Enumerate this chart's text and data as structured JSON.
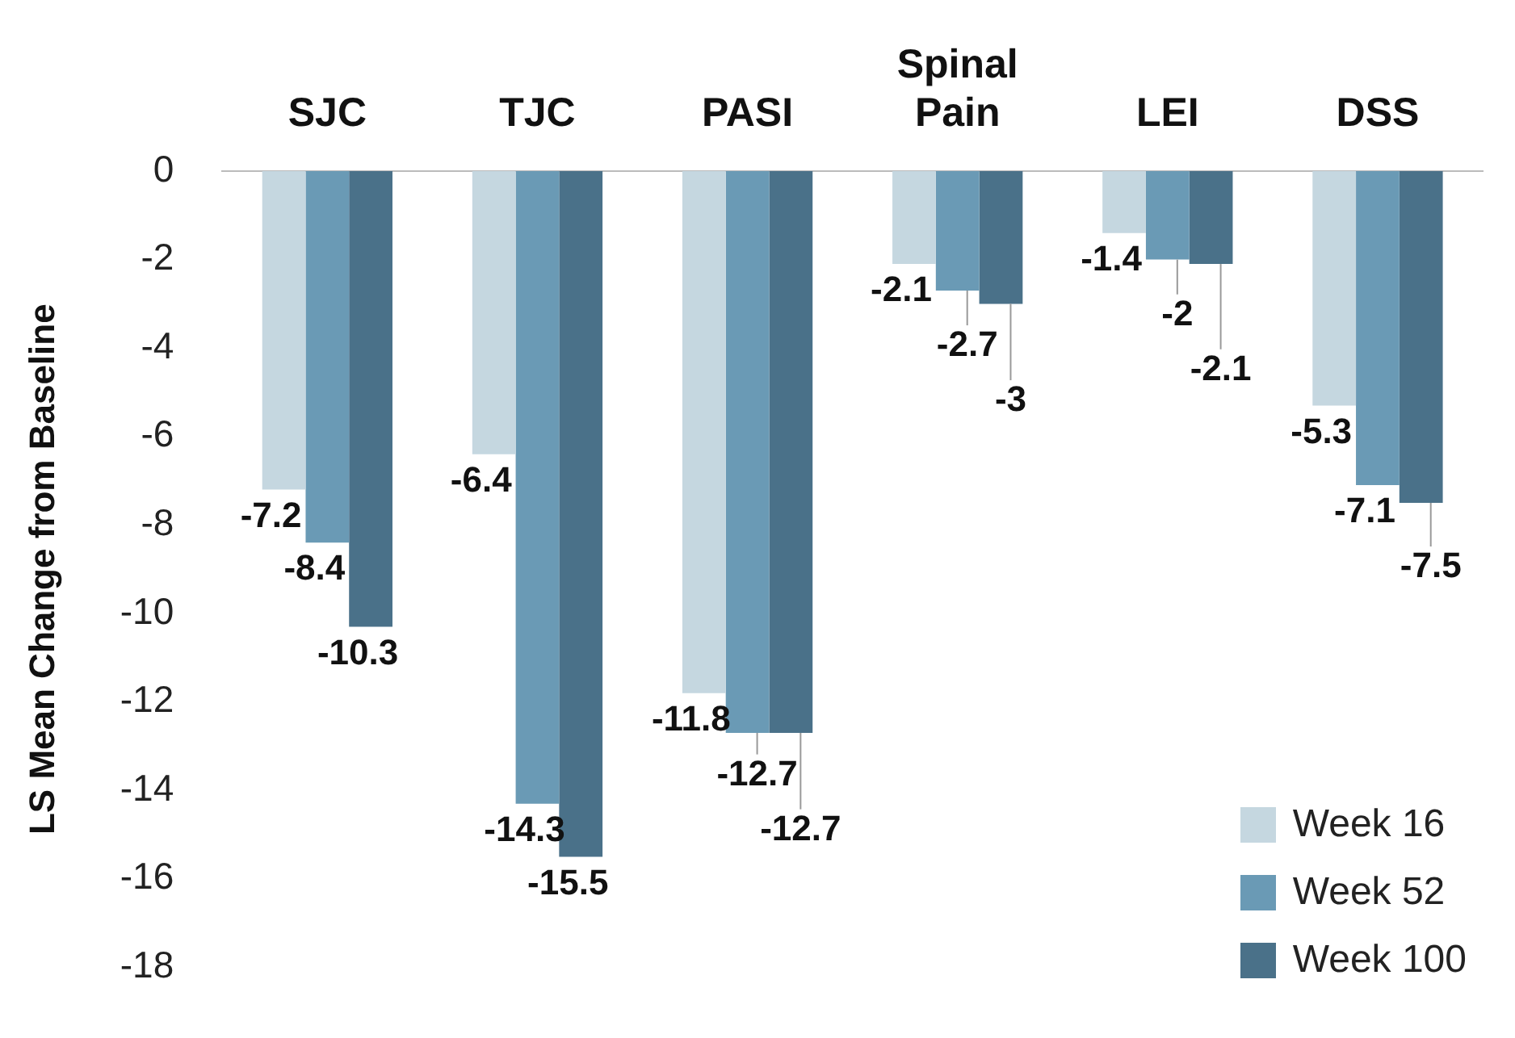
{
  "chart_data": {
    "type": "bar",
    "ylabel": "LS Mean Change from Baseline",
    "categories": [
      "SJC",
      "TJC",
      "PASI",
      "Spinal Pain",
      "LEI",
      "DSS"
    ],
    "series": [
      {
        "name": "Week 16",
        "color": "#c5d7e0",
        "values": [
          -7.2,
          -6.4,
          -11.8,
          -2.1,
          -1.4,
          -5.3
        ]
      },
      {
        "name": "Week 52",
        "color": "#6a9ab5",
        "values": [
          -8.4,
          -14.3,
          -12.7,
          -2.7,
          -2,
          -7.1
        ]
      },
      {
        "name": "Week 100",
        "color": "#4a7189",
        "values": [
          -10.3,
          -15.5,
          -12.7,
          -3,
          -2.1,
          -7.5
        ]
      }
    ],
    "ylim": [
      -18,
      0
    ],
    "yticks": [
      0,
      -2,
      -4,
      -6,
      -8,
      -10,
      -12,
      -14,
      -16,
      -18
    ],
    "grid": false,
    "legend": "bottom right",
    "data_labels": true
  }
}
